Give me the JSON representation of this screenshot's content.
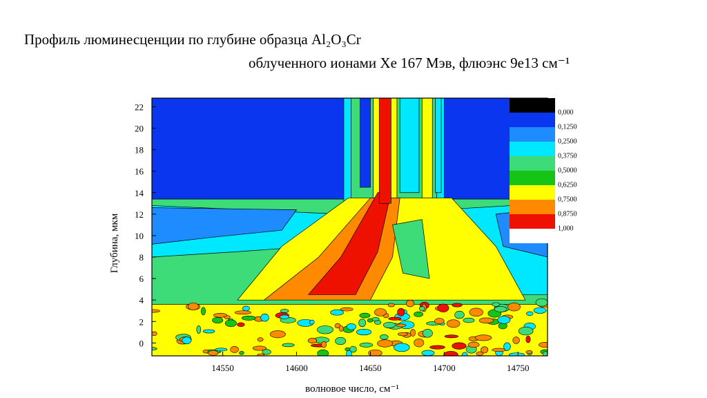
{
  "chart_data": {
    "type": "contour",
    "title": "Профиль люминесценции по глубине образца  Al₂O₃Cr",
    "subtitle": "облученного ионами Xe 167 Мэв, флюэнс 9e13 см⁻¹",
    "x_label": "волновое число, см⁻¹",
    "y_label": "Глубина, мкм",
    "xlim": [
      14502,
      14770
    ],
    "ylim": [
      -1.2,
      22.8
    ],
    "xticks": [
      14550,
      14600,
      14650,
      14700,
      14750
    ],
    "yticks": [
      0,
      2,
      4,
      6,
      8,
      10,
      12,
      14,
      16,
      18,
      20,
      22
    ],
    "levels": [
      {
        "value": 0,
        "label": "0,000"
      },
      {
        "value": 0.125,
        "label": "0,1250"
      },
      {
        "value": 0.25,
        "label": "0,2500"
      },
      {
        "value": 0.375,
        "label": "0,3750"
      },
      {
        "value": 0.5,
        "label": "0,5000"
      },
      {
        "value": 0.625,
        "label": "0,6250"
      },
      {
        "value": 0.75,
        "label": "0,7500"
      },
      {
        "value": 0.875,
        "label": "0,8750"
      },
      {
        "value": 1,
        "label": "1,000"
      }
    ],
    "level_colors": [
      "#000000",
      "#0a36f0",
      "#1e8cff",
      "#00e8ff",
      "#3ddc78",
      "#16c416",
      "#ffff00",
      "#ff8a00",
      "#ee1100",
      "#ffffff"
    ]
  }
}
